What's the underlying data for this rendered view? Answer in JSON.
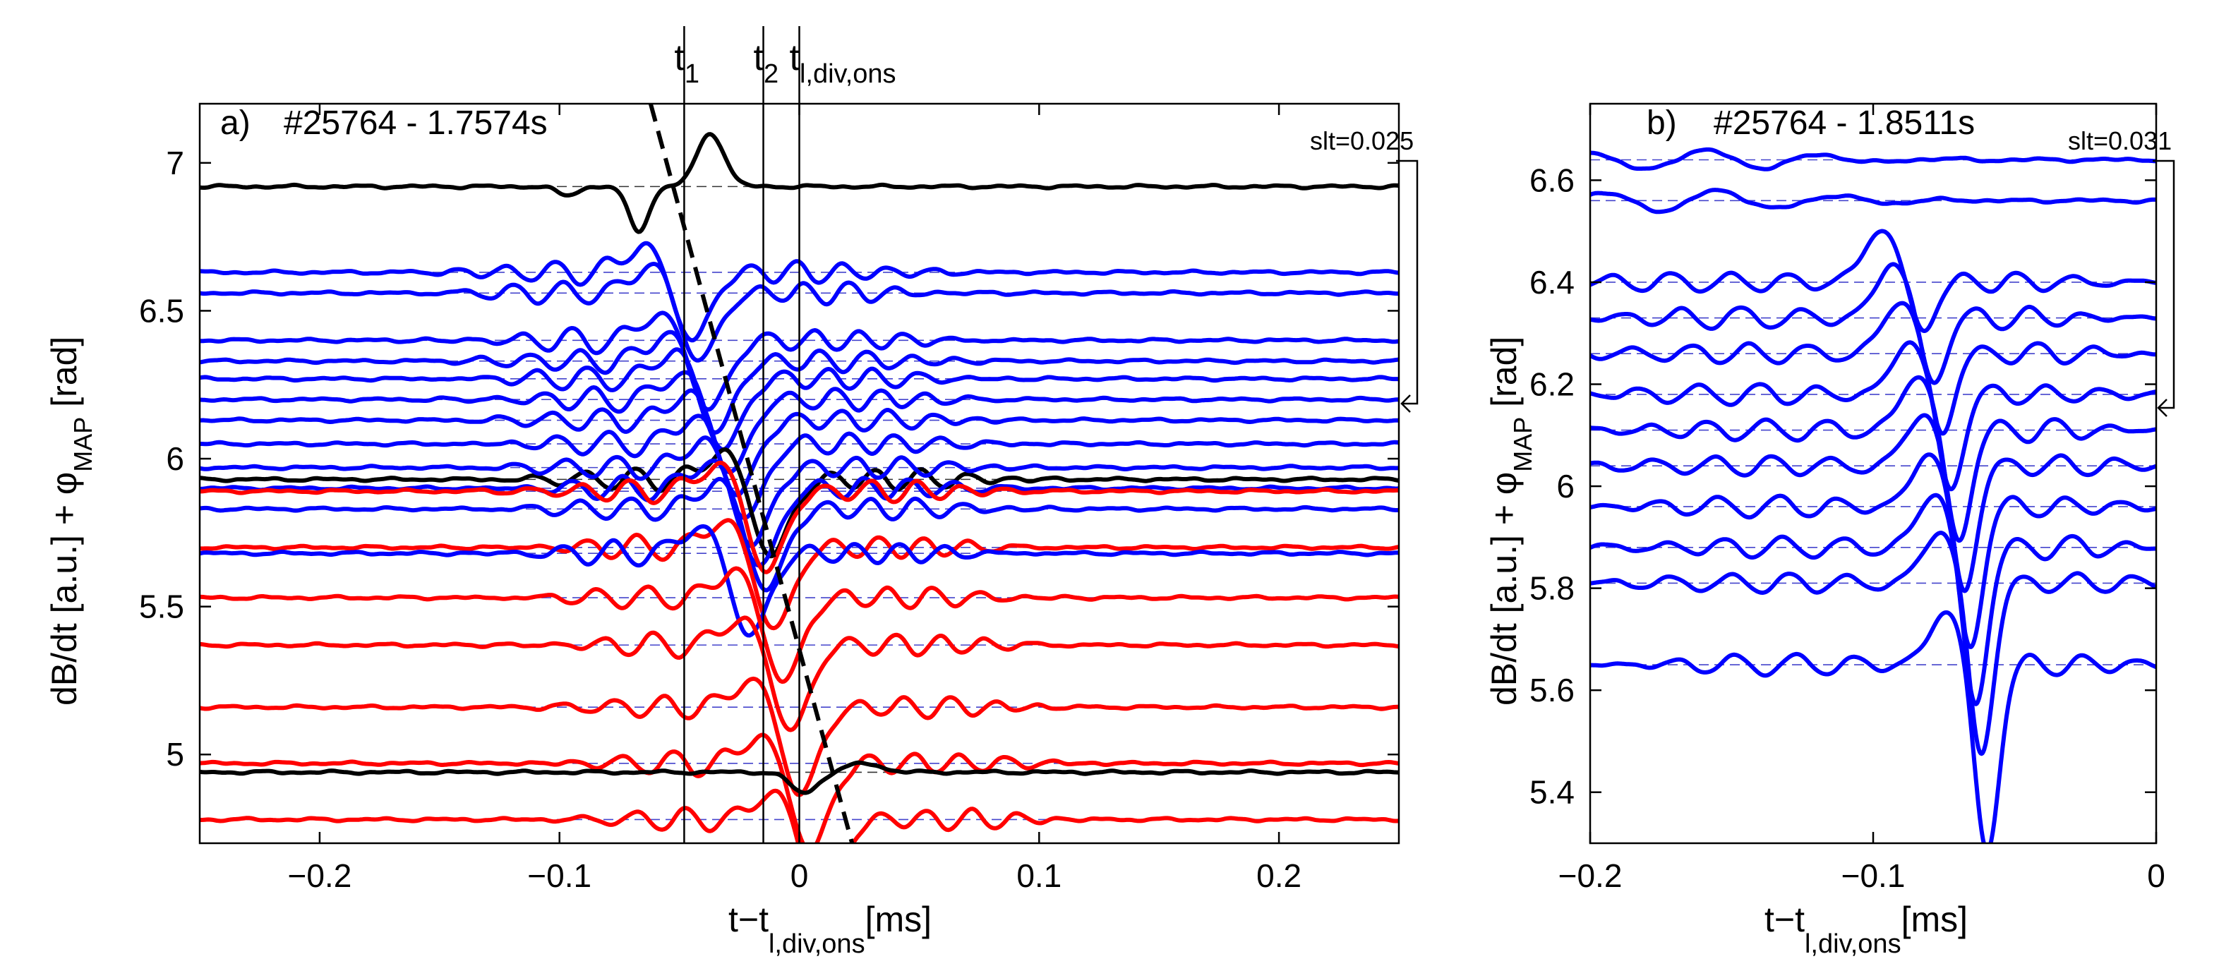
{
  "chart_data": [
    {
      "type": "line",
      "panel_label": "a)",
      "title": "#25764 - 1.7574s",
      "xlabel": {
        "main": "t−t",
        "sub": "l,div,ons",
        "unit": "[ms]"
      },
      "ylabel": {
        "pre": "dB/dt [a.u.] + ",
        "phi": "φ",
        "sub": "MAP",
        "unit": "[rad]"
      },
      "xlim": [
        -0.25,
        0.25
      ],
      "ylim": [
        4.7,
        7.2
      ],
      "xticks": [
        -0.2,
        -0.1,
        0,
        0.1,
        0.2
      ],
      "xtick_labels": [
        "−0.2",
        "−0.1",
        "0",
        "0.1",
        "0.2"
      ],
      "yticks": [
        5,
        5.5,
        6,
        6.5,
        7
      ],
      "ytick_labels": [
        "5",
        "5.5",
        "6",
        "6.5",
        "7"
      ],
      "vlines": [
        {
          "name": "t1",
          "x": -0.048,
          "label": "t",
          "sub": "1"
        },
        {
          "name": "t2",
          "x": -0.015,
          "label": "t",
          "sub": "2"
        },
        {
          "name": "tdiv",
          "x": 0.0,
          "label": "t",
          "sub": "l,div,ons"
        }
      ],
      "dashed_fit": {
        "x": [
          -0.062,
          0.022
        ],
        "y": [
          7.2,
          4.7
        ]
      },
      "slt_label": "slt=0.025",
      "slt_value": 0.025,
      "baselines": [
        {
          "color": "#000000",
          "y": 6.92,
          "x0": -0.057,
          "shape": "hump"
        },
        {
          "color": "#0000ff",
          "y": 6.63,
          "x0": -0.044
        },
        {
          "color": "#0000ff",
          "y": 6.56,
          "x0": -0.041
        },
        {
          "color": "#0000ff",
          "y": 6.4,
          "x0": -0.037
        },
        {
          "color": "#0000ff",
          "y": 6.33,
          "x0": -0.034
        },
        {
          "color": "#0000ff",
          "y": 6.27,
          "x0": -0.031
        },
        {
          "color": "#0000ff",
          "y": 6.2,
          "x0": -0.028
        },
        {
          "color": "#0000ff",
          "y": 6.13,
          "x0": -0.025
        },
        {
          "color": "#0000ff",
          "y": 6.05,
          "x0": -0.022
        },
        {
          "color": "#000000",
          "y": 5.93,
          "x0": -0.011
        },
        {
          "color": "#0000ff",
          "y": 5.97,
          "x0": -0.019
        },
        {
          "color": "#0000ff",
          "y": 5.9,
          "x0": -0.016
        },
        {
          "color": "#ff0000",
          "y": 5.89,
          "x0": -0.013
        },
        {
          "color": "#0000ff",
          "y": 5.83,
          "x0": -0.013
        },
        {
          "color": "#ff0000",
          "y": 5.7,
          "x0": -0.01
        },
        {
          "color": "#0000ff",
          "y": 5.68,
          "x0": -0.02
        },
        {
          "color": "#ff0000",
          "y": 5.53,
          "x0": -0.006
        },
        {
          "color": "#ff0000",
          "y": 5.37,
          "x0": -0.003
        },
        {
          "color": "#ff0000",
          "y": 5.16,
          "x0": 0.001
        },
        {
          "color": "#ff0000",
          "y": 4.97,
          "x0": 0.005
        },
        {
          "color": "#000000",
          "y": 4.94,
          "x0": 0.002,
          "shape": "dip"
        },
        {
          "color": "#ff0000",
          "y": 4.78,
          "x0": 0.01
        }
      ]
    },
    {
      "type": "line",
      "panel_label": "b)",
      "title": "#25764 - 1.8511s",
      "xlabel": {
        "main": "t−t",
        "sub": "l,div,ons",
        "unit": "[ms]"
      },
      "ylabel": {
        "pre": "dB/dt [a.u.] + ",
        "phi": "φ",
        "sub": "MAP",
        "unit": "[rad]"
      },
      "xlim": [
        -0.2,
        0.0
      ],
      "ylim": [
        5.3,
        6.75
      ],
      "xticks": [
        -0.2,
        -0.1,
        0
      ],
      "xtick_labels": [
        "−0.2",
        "−0.1",
        "0"
      ],
      "yticks": [
        5.4,
        5.6,
        5.8,
        6.0,
        6.2,
        6.4,
        6.6
      ],
      "ytick_labels": [
        "5.4",
        "5.6",
        "5.8",
        "6",
        "6.2",
        "6.4",
        "6.6"
      ],
      "slt_label": "slt=0.031",
      "slt_value": 0.031,
      "baselines": [
        {
          "color": "#0000ff",
          "y": 6.64,
          "x0": -0.17,
          "shape": "small"
        },
        {
          "color": "#0000ff",
          "y": 6.56,
          "x0": -0.165,
          "shape": "small"
        },
        {
          "color": "#0000ff",
          "y": 6.4,
          "x0": -0.093
        },
        {
          "color": "#0000ff",
          "y": 6.33,
          "x0": -0.089
        },
        {
          "color": "#0000ff",
          "y": 6.26,
          "x0": -0.086
        },
        {
          "color": "#0000ff",
          "y": 6.18,
          "x0": -0.083
        },
        {
          "color": "#0000ff",
          "y": 6.11,
          "x0": -0.08
        },
        {
          "color": "#0000ff",
          "y": 6.04,
          "x0": -0.078
        },
        {
          "color": "#0000ff",
          "y": 5.96,
          "x0": -0.076
        },
        {
          "color": "#0000ff",
          "y": 5.88,
          "x0": -0.074
        },
        {
          "color": "#0000ff",
          "y": 5.81,
          "x0": -0.072
        },
        {
          "color": "#0000ff",
          "y": 5.65,
          "x0": -0.07
        }
      ]
    }
  ]
}
